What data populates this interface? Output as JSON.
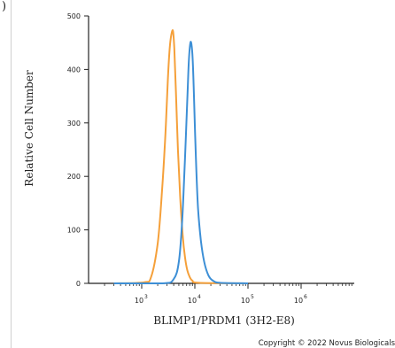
{
  "panel_label": ")",
  "copyright": "Copyright © 2022 Novus Biologicals",
  "chart_data": {
    "type": "line",
    "title": "",
    "xlabel": "BLIMP1/PRDM1 (3H2-E8)",
    "ylabel": "Relative Cell Number",
    "x_scale": "log",
    "xlim": [
      100,
      10000000
    ],
    "ylim": [
      0,
      500
    ],
    "x_ticks": [
      {
        "value": 1000,
        "base": "10",
        "exp": "3"
      },
      {
        "value": 10000,
        "base": "10",
        "exp": "4"
      },
      {
        "value": 100000,
        "base": "10",
        "exp": "5"
      },
      {
        "value": 1000000,
        "base": "10",
        "exp": "6"
      }
    ],
    "y_ticks": [
      "0",
      "100",
      "200",
      "300",
      "400",
      "500"
    ],
    "grid": false,
    "series": [
      {
        "color": "#f5a03a",
        "x": [
          300,
          1100,
          1500,
          2000,
          2400,
          2800,
          3100,
          3400,
          3700,
          3900,
          4100,
          4400,
          4800,
          5300,
          5900,
          6500,
          7200,
          8000,
          9000,
          12000,
          100000
        ],
        "y": [
          0,
          2,
          12,
          75,
          170,
          280,
          380,
          445,
          470,
          470,
          440,
          360,
          250,
          160,
          90,
          50,
          25,
          12,
          5,
          1,
          0
        ]
      },
      {
        "color": "#3d8fd6",
        "x": [
          300,
          2500,
          4000,
          5000,
          5800,
          6500,
          7200,
          7700,
          8200,
          8600,
          9100,
          9700,
          10500,
          11500,
          13000,
          15000,
          18000,
          22000,
          30000,
          100000
        ],
        "y": [
          0,
          0,
          8,
          40,
          120,
          230,
          340,
          415,
          448,
          448,
          420,
          340,
          230,
          140,
          80,
          40,
          15,
          5,
          1,
          0
        ]
      }
    ]
  }
}
